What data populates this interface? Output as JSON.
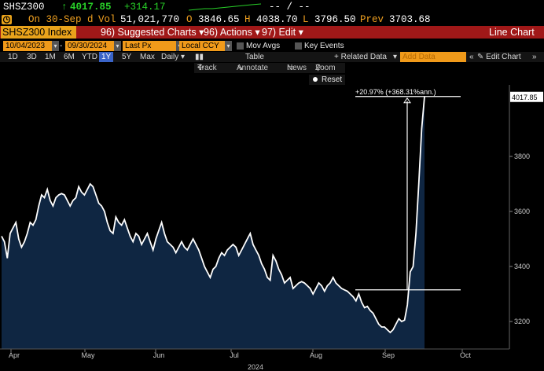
{
  "quote": {
    "ticker": "SHSZ300",
    "arrow": "↑",
    "last": "4017.85",
    "change": "+314.17",
    "range_text": "-- / --",
    "date_label": "On 30-Sep d",
    "vol_label": "Vol",
    "vol": "51,021,770",
    "open_label": "O",
    "open": "3846.65",
    "high_label": "H",
    "high": "4038.70",
    "low_label": "L",
    "low": "3796.50",
    "prev_label": "Prev",
    "prev": "3703.68"
  },
  "menubar": {
    "security": "SHSZ300 Index",
    "suggested": "96) Suggested Charts",
    "actions": "96) Actions",
    "edit": "97) Edit",
    "title": "Line Chart"
  },
  "controls": {
    "start_date": "10/04/2023",
    "end_date": "09/30/2024",
    "px_field": "Last Px",
    "currency": "Local CCY",
    "mov_avgs": "Mov Avgs",
    "key_events": "Key Events",
    "periods": [
      "1D",
      "3D",
      "1M",
      "6M",
      "YTD",
      "1Y",
      "5Y",
      "Max"
    ],
    "selected_period": "1Y",
    "frequency": "Daily",
    "table": "Table",
    "related_data": "+ Related Data",
    "add_data_placeholder": "Add Data",
    "edit_chart": "Edit Chart",
    "track": "Track",
    "annotate": "Annotate",
    "news": "News",
    "zoom": "Zoom",
    "reset": "Reset"
  },
  "colors": {
    "up": "#28d028",
    "label": "#f0a020",
    "menubar": "#a01818",
    "area": "#0f2642",
    "line": "#ffffff"
  },
  "chart_data": {
    "type": "area",
    "series": [
      {
        "values": [
          3510,
          3490,
          3430,
          3520,
          3540,
          3560,
          3500,
          3470,
          3490,
          3520,
          3560,
          3550,
          3570,
          3620,
          3660,
          3650,
          3680,
          3640,
          3620,
          3650,
          3660,
          3665,
          3660,
          3640,
          3620,
          3640,
          3650,
          3690,
          3670,
          3660,
          3680,
          3700,
          3690,
          3660,
          3630,
          3620,
          3600,
          3560,
          3530,
          3520,
          3580,
          3560,
          3550,
          3570,
          3540,
          3510,
          3490,
          3520,
          3510,
          3480,
          3500,
          3520,
          3490,
          3460,
          3500,
          3530,
          3560,
          3520,
          3490,
          3480,
          3470,
          3450,
          3470,
          3490,
          3470,
          3460,
          3480,
          3500,
          3480,
          3460,
          3430,
          3400,
          3380,
          3360,
          3390,
          3400,
          3430,
          3450,
          3440,
          3460,
          3470,
          3480,
          3470,
          3440,
          3460,
          3480,
          3500,
          3520,
          3480,
          3460,
          3440,
          3410,
          3390,
          3360,
          3350,
          3440,
          3420,
          3390,
          3370,
          3340,
          3350,
          3360,
          3320,
          3330,
          3340,
          3345,
          3340,
          3330,
          3320,
          3300,
          3320,
          3340,
          3330,
          3310,
          3330,
          3340,
          3360,
          3340,
          3330,
          3320,
          3315,
          3310,
          3300,
          3290,
          3275,
          3300,
          3270,
          3250,
          3255,
          3240,
          3230,
          3210,
          3190,
          3180,
          3180,
          3170,
          3160,
          3170,
          3190,
          3210,
          3200,
          3205,
          3260,
          3380,
          3400,
          3520,
          3700,
          3900,
          4017.85
        ]
      }
    ],
    "y_ticks": [
      3200,
      3400,
      3600,
      3800
    ],
    "ylim": [
      3100,
      4060
    ],
    "x_ticks": [
      "Apr",
      "May",
      "Jun",
      "Jul",
      "Aug",
      "Sep",
      "Oct"
    ],
    "x_year": "2024",
    "last_value_label": "4017.85",
    "annotation": "+20.97% (+368.31%ann.)",
    "grid": false
  }
}
